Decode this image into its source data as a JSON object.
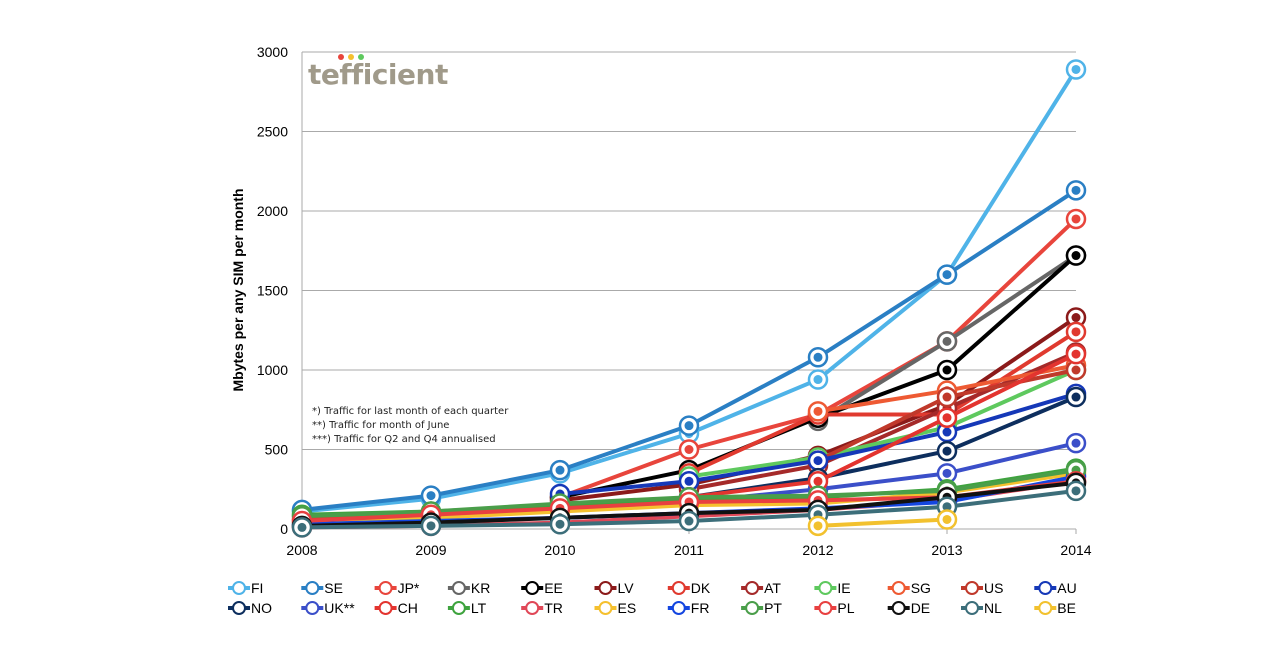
{
  "chart_data": {
    "type": "line",
    "title": "",
    "xlabel": "",
    "ylabel": "Mbytes per any SIM per month",
    "x": [
      2008,
      2009,
      2010,
      2011,
      2012,
      2013,
      2014
    ],
    "xticks": [
      "2008",
      "2009",
      "2010",
      "2011",
      "2012",
      "2013",
      "2014"
    ],
    "ylim": [
      0,
      3000
    ],
    "yticks": [
      "0",
      "500",
      "1000",
      "1500",
      "2000",
      "2500",
      "3000"
    ],
    "grid": "horizontal",
    "legend_placement": "bottom",
    "notes": [
      "*) Traffic for last month of each quarter",
      "**) Traffic for month of June",
      "***) Traffic for Q2 and Q4 annualised"
    ],
    "logo": "tefficient",
    "series": [
      {
        "name": "FI",
        "color": "#4fb3e8",
        "values": [
          110,
          190,
          350,
          600,
          940,
          1600,
          2890
        ]
      },
      {
        "name": "SE",
        "color": "#2a7fc4",
        "values": [
          120,
          210,
          370,
          650,
          1080,
          1600,
          2130
        ]
      },
      {
        "name": "JP*",
        "color": "#e8453c",
        "values": [
          null,
          null,
          200,
          500,
          720,
          1180,
          1950
        ]
      },
      {
        "name": "KR",
        "color": "#666666",
        "values": [
          null,
          null,
          null,
          null,
          680,
          1180,
          1720
        ]
      },
      {
        "name": "EE",
        "color": "#000000",
        "values": [
          null,
          null,
          200,
          370,
          700,
          1000,
          1720
        ]
      },
      {
        "name": "LV",
        "color": "#8b1a1a",
        "values": [
          null,
          null,
          180,
          280,
          460,
          780,
          1330
        ]
      },
      {
        "name": "DK",
        "color": "#e03a2f",
        "values": [
          null,
          null,
          null,
          350,
          720,
          720,
          1240
        ]
      },
      {
        "name": "AT",
        "color": "#a52a2a",
        "values": [
          null,
          null,
          null,
          250,
          400,
          760,
          1110
        ]
      },
      {
        "name": "IE",
        "color": "#5ec95e",
        "values": [
          null,
          null,
          null,
          330,
          450,
          640,
          1000
        ]
      },
      {
        "name": "SG",
        "color": "#ee5a33",
        "values": [
          null,
          null,
          null,
          null,
          740,
          870,
          1030
        ]
      },
      {
        "name": "US",
        "color": "#c0392b",
        "values": [
          null,
          null,
          null,
          null,
          430,
          830,
          1000
        ]
      },
      {
        "name": "AU",
        "color": "#1538b8",
        "values": [
          null,
          null,
          220,
          300,
          430,
          610,
          850
        ]
      },
      {
        "name": "NO",
        "color": "#0d2e5e",
        "values": [
          null,
          null,
          null,
          200,
          320,
          490,
          830
        ]
      },
      {
        "name": "UK**",
        "color": "#3b4fc9",
        "values": [
          null,
          null,
          null,
          170,
          250,
          350,
          540
        ]
      },
      {
        "name": "CH",
        "color": "#e3342f",
        "values": [
          60,
          90,
          140,
          200,
          300,
          700,
          1100
        ]
      },
      {
        "name": "LT",
        "color": "#3ea33e",
        "values": [
          90,
          110,
          150,
          190,
          200,
          250,
          380
        ]
      },
      {
        "name": "TR",
        "color": "#e04858",
        "values": [
          10,
          20,
          40,
          80,
          120,
          180,
          300
        ]
      },
      {
        "name": "ES",
        "color": "#f5c02e",
        "values": [
          40,
          70,
          110,
          150,
          160,
          230,
          350
        ]
      },
      {
        "name": "FR",
        "color": "#1446e0",
        "values": [
          30,
          50,
          70,
          100,
          130,
          170,
          330
        ]
      },
      {
        "name": "PT",
        "color": "#4a9e4a",
        "values": [
          80,
          110,
          160,
          200,
          210,
          240,
          370
        ]
      },
      {
        "name": "PL",
        "color": "#e84040",
        "values": [
          50,
          90,
          130,
          170,
          180,
          200,
          300
        ]
      },
      {
        "name": "DE",
        "color": "#111111",
        "values": [
          20,
          40,
          70,
          100,
          120,
          200,
          290
        ]
      },
      {
        "name": "NL",
        "color": "#3c6e7a",
        "values": [
          10,
          20,
          30,
          50,
          90,
          140,
          240
        ]
      },
      {
        "name": "BE",
        "color": "#f2c12e",
        "values": [
          null,
          null,
          null,
          null,
          20,
          60,
          null
        ]
      }
    ]
  }
}
